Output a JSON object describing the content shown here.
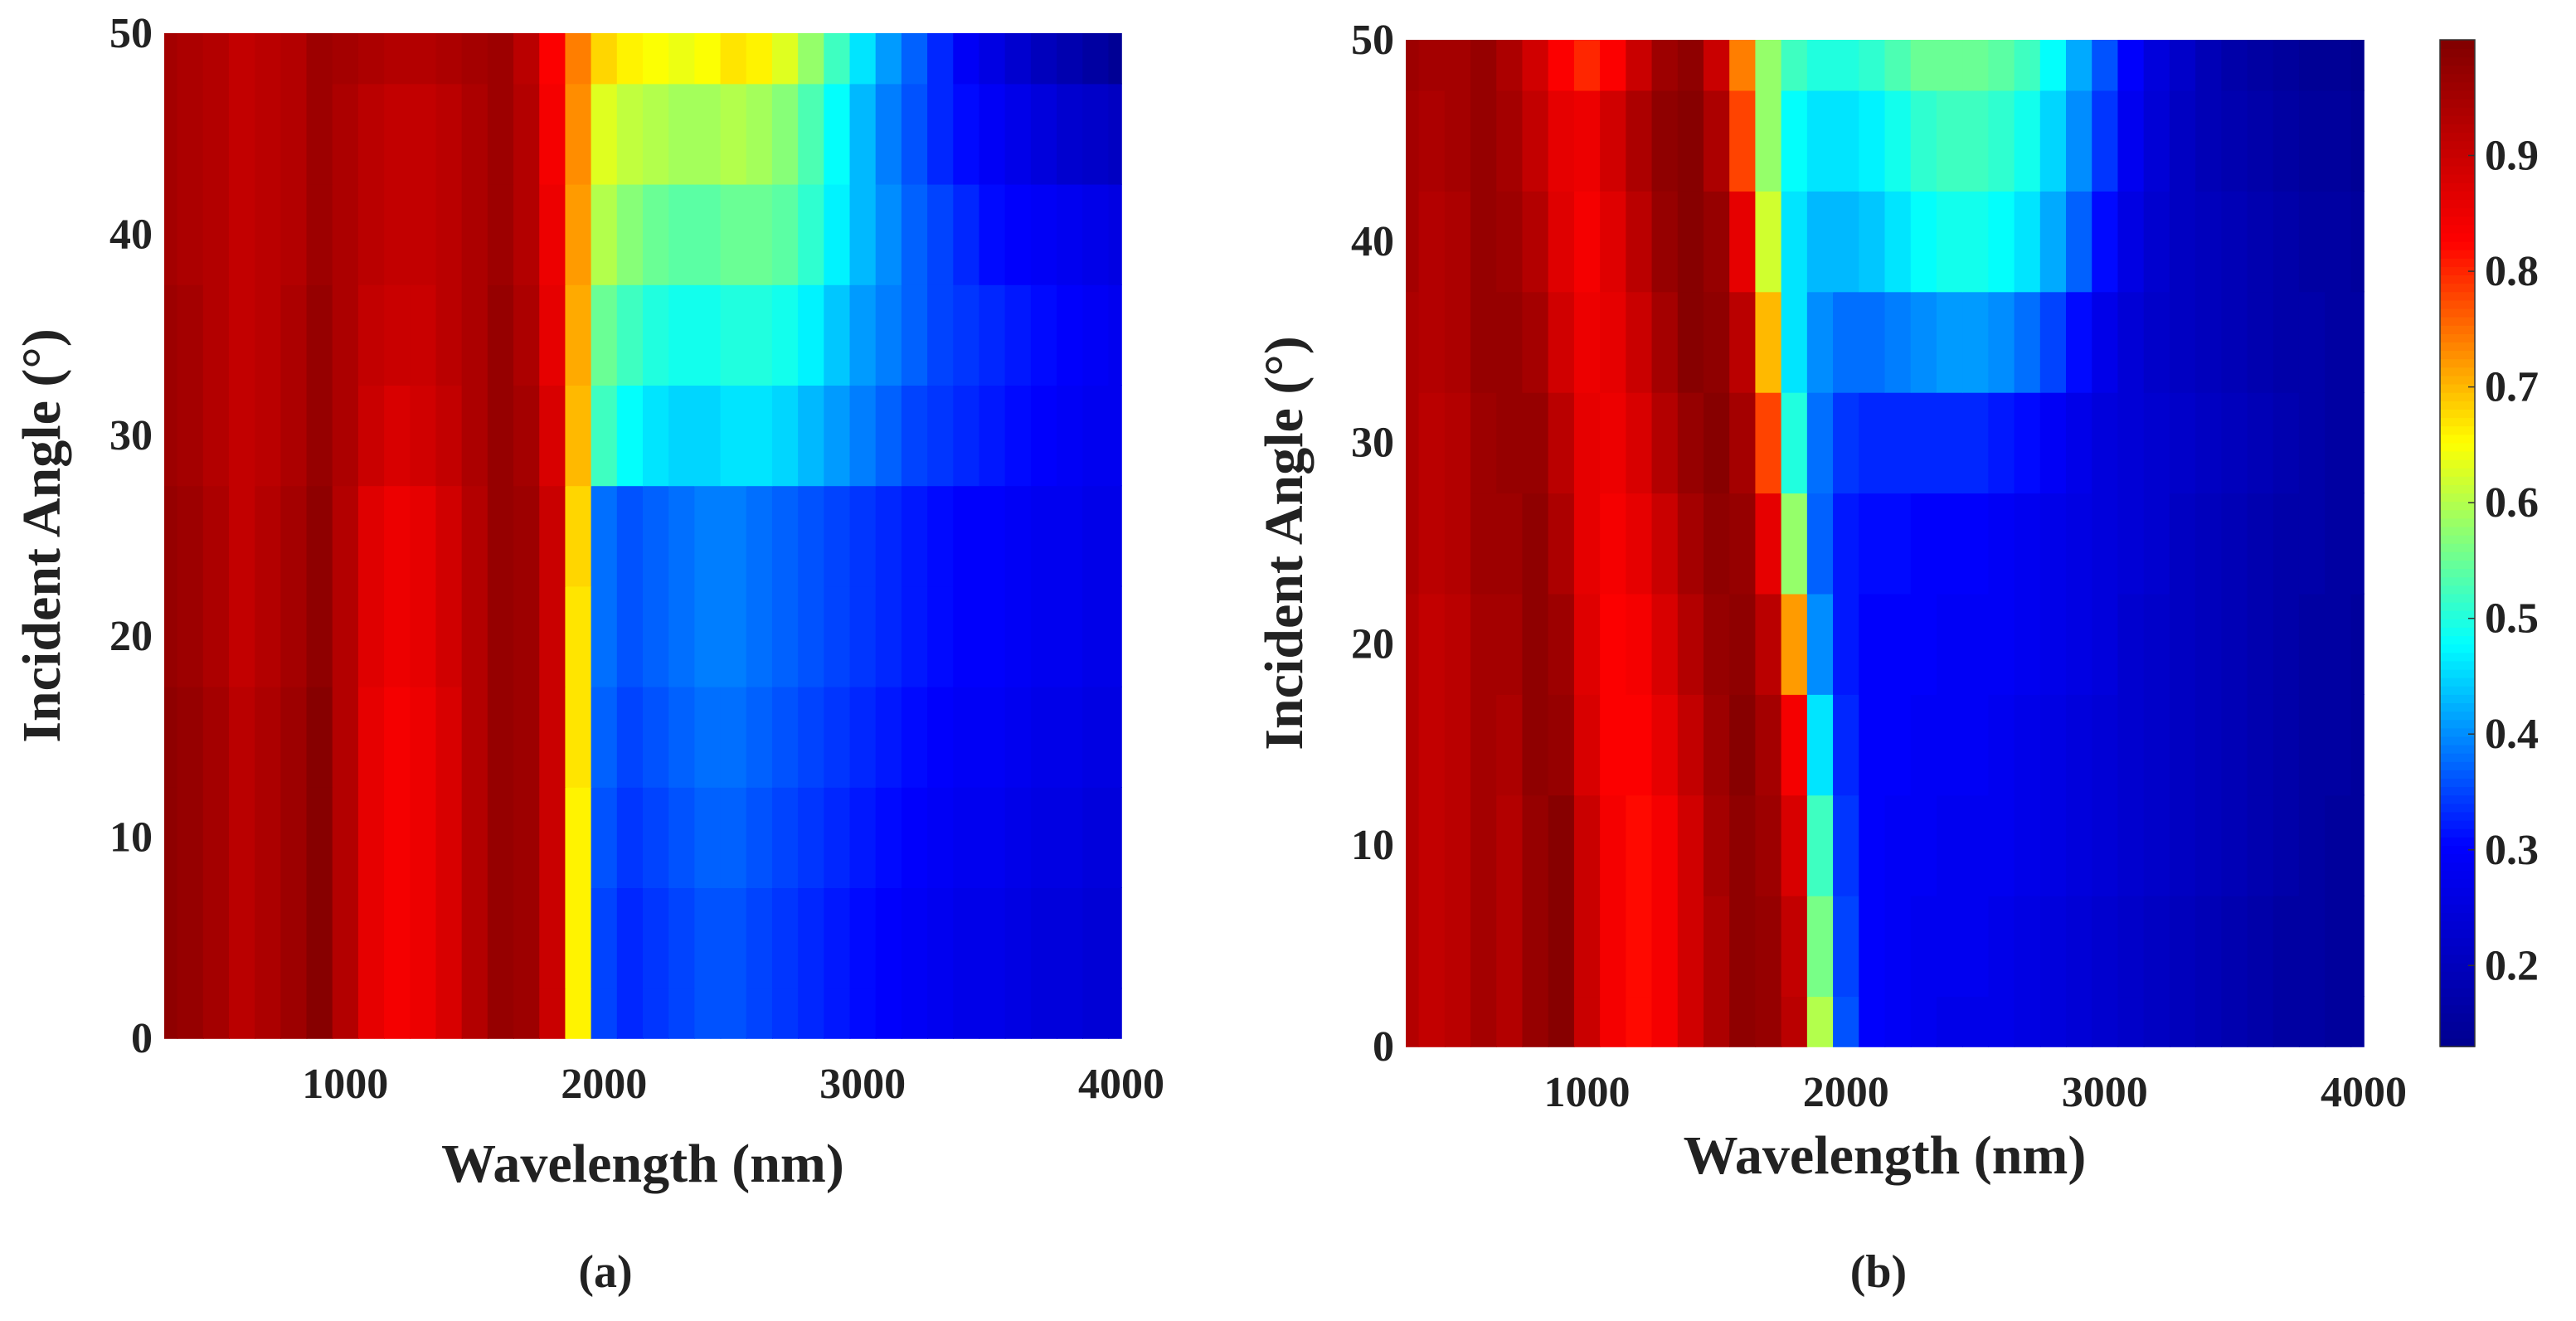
{
  "figure": {
    "colormap": "jet",
    "colormap_stops": [
      "#00008f",
      "#0000ff",
      "#00ffff",
      "#ffff00",
      "#ff0000",
      "#800000"
    ]
  },
  "chart_data": [
    {
      "type": "heatmap",
      "panel": "a",
      "caption": "(a)",
      "title": "",
      "xlabel": "Wavelength (nm)",
      "ylabel": "Incident Angle (°)",
      "xlim": [
        300,
        4000
      ],
      "ylim": [
        0,
        50
      ],
      "xticks": [
        1000,
        2000,
        3000,
        4000
      ],
      "xtick_labels": [
        "1000",
        "2000",
        "3000",
        "4000"
      ],
      "yticks": [
        0,
        10,
        20,
        30,
        40,
        50
      ],
      "ytick_labels": [
        "0",
        "10",
        "20",
        "30",
        "40",
        "50"
      ],
      "x": [
        300,
        400,
        500,
        600,
        700,
        800,
        900,
        1000,
        1100,
        1200,
        1300,
        1400,
        1500,
        1600,
        1700,
        1800,
        1900,
        2000,
        2100,
        2200,
        2300,
        2400,
        2500,
        2600,
        2700,
        2800,
        2900,
        3000,
        3100,
        3200,
        3300,
        3400,
        3500,
        3600,
        3700,
        3800,
        3900,
        4000
      ],
      "y": [
        0,
        5,
        10,
        15,
        20,
        25,
        30,
        35,
        40,
        45,
        50
      ],
      "z": [
        [
          0.98,
          0.97,
          0.95,
          0.92,
          0.94,
          0.96,
          0.99,
          0.93,
          0.86,
          0.84,
          0.85,
          0.88,
          0.93,
          0.97,
          0.96,
          0.9,
          0.66,
          0.35,
          0.33,
          0.34,
          0.35,
          0.36,
          0.36,
          0.35,
          0.34,
          0.33,
          0.32,
          0.31,
          0.3,
          0.29,
          0.28,
          0.27,
          0.27,
          0.26,
          0.25,
          0.25,
          0.24,
          0.24
        ],
        [
          0.98,
          0.97,
          0.95,
          0.92,
          0.94,
          0.96,
          0.99,
          0.93,
          0.86,
          0.84,
          0.85,
          0.88,
          0.93,
          0.97,
          0.96,
          0.9,
          0.66,
          0.35,
          0.33,
          0.34,
          0.35,
          0.36,
          0.36,
          0.35,
          0.34,
          0.33,
          0.32,
          0.31,
          0.3,
          0.29,
          0.28,
          0.27,
          0.27,
          0.26,
          0.25,
          0.25,
          0.24,
          0.24
        ],
        [
          0.98,
          0.97,
          0.95,
          0.92,
          0.94,
          0.96,
          0.99,
          0.93,
          0.86,
          0.84,
          0.85,
          0.88,
          0.93,
          0.97,
          0.96,
          0.9,
          0.66,
          0.36,
          0.34,
          0.35,
          0.36,
          0.37,
          0.37,
          0.36,
          0.35,
          0.34,
          0.33,
          0.32,
          0.31,
          0.3,
          0.29,
          0.28,
          0.28,
          0.27,
          0.26,
          0.26,
          0.25,
          0.25
        ],
        [
          0.98,
          0.97,
          0.95,
          0.92,
          0.94,
          0.96,
          0.99,
          0.93,
          0.86,
          0.84,
          0.85,
          0.88,
          0.93,
          0.97,
          0.96,
          0.9,
          0.67,
          0.37,
          0.35,
          0.36,
          0.37,
          0.38,
          0.38,
          0.37,
          0.36,
          0.35,
          0.34,
          0.33,
          0.32,
          0.31,
          0.3,
          0.29,
          0.29,
          0.28,
          0.27,
          0.27,
          0.26,
          0.26
        ],
        [
          0.97,
          0.96,
          0.94,
          0.91,
          0.93,
          0.95,
          0.98,
          0.93,
          0.87,
          0.85,
          0.86,
          0.89,
          0.93,
          0.97,
          0.96,
          0.9,
          0.67,
          0.38,
          0.36,
          0.37,
          0.38,
          0.39,
          0.39,
          0.38,
          0.37,
          0.36,
          0.35,
          0.34,
          0.33,
          0.32,
          0.31,
          0.3,
          0.3,
          0.29,
          0.28,
          0.28,
          0.27,
          0.27
        ],
        [
          0.97,
          0.96,
          0.94,
          0.91,
          0.93,
          0.95,
          0.98,
          0.93,
          0.87,
          0.85,
          0.86,
          0.89,
          0.93,
          0.97,
          0.96,
          0.9,
          0.68,
          0.38,
          0.36,
          0.37,
          0.38,
          0.39,
          0.39,
          0.38,
          0.37,
          0.36,
          0.35,
          0.34,
          0.33,
          0.32,
          0.31,
          0.3,
          0.3,
          0.29,
          0.28,
          0.28,
          0.27,
          0.27
        ],
        [
          0.96,
          0.95,
          0.93,
          0.91,
          0.92,
          0.94,
          0.97,
          0.94,
          0.9,
          0.88,
          0.89,
          0.91,
          0.94,
          0.97,
          0.95,
          0.88,
          0.7,
          0.52,
          0.48,
          0.46,
          0.45,
          0.45,
          0.46,
          0.46,
          0.45,
          0.43,
          0.41,
          0.39,
          0.37,
          0.35,
          0.34,
          0.33,
          0.32,
          0.31,
          0.3,
          0.29,
          0.28,
          0.28
        ],
        [
          0.96,
          0.95,
          0.93,
          0.91,
          0.92,
          0.94,
          0.97,
          0.94,
          0.91,
          0.9,
          0.9,
          0.92,
          0.94,
          0.97,
          0.94,
          0.86,
          0.71,
          0.55,
          0.52,
          0.5,
          0.49,
          0.49,
          0.5,
          0.5,
          0.49,
          0.47,
          0.44,
          0.41,
          0.39,
          0.37,
          0.35,
          0.34,
          0.33,
          0.32,
          0.31,
          0.3,
          0.29,
          0.28
        ],
        [
          0.95,
          0.94,
          0.93,
          0.91,
          0.92,
          0.93,
          0.96,
          0.94,
          0.92,
          0.91,
          0.91,
          0.92,
          0.94,
          0.96,
          0.93,
          0.85,
          0.72,
          0.6,
          0.57,
          0.55,
          0.54,
          0.54,
          0.55,
          0.55,
          0.54,
          0.51,
          0.47,
          0.43,
          0.4,
          0.37,
          0.35,
          0.33,
          0.31,
          0.3,
          0.29,
          0.28,
          0.27,
          0.26
        ],
        [
          0.95,
          0.94,
          0.93,
          0.91,
          0.92,
          0.93,
          0.96,
          0.94,
          0.92,
          0.91,
          0.91,
          0.92,
          0.94,
          0.96,
          0.93,
          0.84,
          0.73,
          0.63,
          0.61,
          0.6,
          0.59,
          0.59,
          0.6,
          0.59,
          0.57,
          0.53,
          0.48,
          0.43,
          0.39,
          0.36,
          0.33,
          0.31,
          0.29,
          0.27,
          0.25,
          0.23,
          0.22,
          0.21
        ],
        [
          0.95,
          0.94,
          0.93,
          0.91,
          0.92,
          0.93,
          0.96,
          0.95,
          0.94,
          0.93,
          0.93,
          0.94,
          0.95,
          0.96,
          0.92,
          0.83,
          0.74,
          0.68,
          0.66,
          0.65,
          0.64,
          0.65,
          0.67,
          0.66,
          0.63,
          0.58,
          0.52,
          0.46,
          0.41,
          0.37,
          0.33,
          0.29,
          0.26,
          0.23,
          0.2,
          0.18,
          0.16,
          0.14
        ]
      ]
    },
    {
      "type": "heatmap",
      "panel": "b",
      "caption": "(b)",
      "title": "",
      "xlabel": "Wavelength (nm)",
      "ylabel": "Incident Angle (°)",
      "xlim": [
        300,
        4000
      ],
      "ylim": [
        0,
        50
      ],
      "xticks": [
        1000,
        2000,
        3000,
        4000
      ],
      "xtick_labels": [
        "1000",
        "2000",
        "3000",
        "4000"
      ],
      "yticks": [
        0,
        10,
        20,
        30,
        40,
        50
      ],
      "ytick_labels": [
        "0",
        "10",
        "20",
        "30",
        "40",
        "50"
      ],
      "x": [
        300,
        400,
        500,
        600,
        700,
        800,
        900,
        1000,
        1100,
        1200,
        1300,
        1400,
        1500,
        1600,
        1700,
        1800,
        1900,
        2000,
        2100,
        2200,
        2300,
        2400,
        2500,
        2600,
        2700,
        2800,
        2900,
        3000,
        3100,
        3200,
        3300,
        3400,
        3500,
        3600,
        3700,
        3800,
        3900,
        4000
      ],
      "y": [
        0,
        5,
        10,
        15,
        20,
        25,
        30,
        35,
        40,
        45,
        50
      ],
      "z": [
        [
          0.93,
          0.91,
          0.92,
          0.95,
          0.93,
          0.97,
          0.99,
          0.9,
          0.84,
          0.82,
          0.84,
          0.89,
          0.94,
          0.98,
          0.97,
          0.92,
          0.6,
          0.36,
          0.3,
          0.29,
          0.28,
          0.27,
          0.27,
          0.27,
          0.26,
          0.25,
          0.24,
          0.23,
          0.22,
          0.21,
          0.2,
          0.19,
          0.18,
          0.17,
          0.16,
          0.16,
          0.15,
          0.15
        ],
        [
          0.93,
          0.91,
          0.92,
          0.95,
          0.93,
          0.97,
          0.99,
          0.9,
          0.84,
          0.82,
          0.84,
          0.89,
          0.94,
          0.98,
          0.97,
          0.91,
          0.56,
          0.35,
          0.3,
          0.29,
          0.28,
          0.28,
          0.28,
          0.27,
          0.26,
          0.25,
          0.24,
          0.23,
          0.22,
          0.21,
          0.2,
          0.19,
          0.18,
          0.17,
          0.16,
          0.16,
          0.15,
          0.15
        ],
        [
          0.93,
          0.91,
          0.92,
          0.95,
          0.93,
          0.97,
          0.99,
          0.9,
          0.84,
          0.82,
          0.84,
          0.89,
          0.95,
          0.98,
          0.96,
          0.88,
          0.52,
          0.34,
          0.3,
          0.29,
          0.29,
          0.28,
          0.28,
          0.28,
          0.27,
          0.26,
          0.25,
          0.24,
          0.23,
          0.22,
          0.21,
          0.2,
          0.19,
          0.18,
          0.17,
          0.16,
          0.15,
          0.15
        ],
        [
          0.93,
          0.91,
          0.92,
          0.95,
          0.94,
          0.98,
          0.97,
          0.88,
          0.83,
          0.83,
          0.86,
          0.91,
          0.96,
          0.99,
          0.95,
          0.84,
          0.46,
          0.33,
          0.3,
          0.3,
          0.29,
          0.29,
          0.29,
          0.28,
          0.27,
          0.26,
          0.25,
          0.24,
          0.23,
          0.22,
          0.21,
          0.2,
          0.19,
          0.18,
          0.17,
          0.16,
          0.16,
          0.15
        ],
        [
          0.93,
          0.91,
          0.92,
          0.95,
          0.95,
          0.98,
          0.96,
          0.87,
          0.83,
          0.84,
          0.88,
          0.93,
          0.97,
          0.98,
          0.92,
          0.72,
          0.4,
          0.32,
          0.3,
          0.3,
          0.3,
          0.29,
          0.29,
          0.29,
          0.28,
          0.27,
          0.26,
          0.25,
          0.23,
          0.22,
          0.21,
          0.2,
          0.19,
          0.18,
          0.17,
          0.16,
          0.16,
          0.15
        ],
        [
          0.94,
          0.92,
          0.93,
          0.96,
          0.96,
          0.98,
          0.94,
          0.86,
          0.84,
          0.86,
          0.9,
          0.95,
          0.98,
          0.97,
          0.86,
          0.58,
          0.37,
          0.32,
          0.31,
          0.31,
          0.3,
          0.3,
          0.3,
          0.29,
          0.28,
          0.27,
          0.26,
          0.25,
          0.24,
          0.23,
          0.21,
          0.2,
          0.19,
          0.18,
          0.17,
          0.17,
          0.16,
          0.16
        ],
        [
          0.94,
          0.92,
          0.93,
          0.96,
          0.97,
          0.97,
          0.92,
          0.86,
          0.85,
          0.88,
          0.93,
          0.97,
          0.99,
          0.95,
          0.78,
          0.5,
          0.38,
          0.34,
          0.33,
          0.33,
          0.33,
          0.33,
          0.33,
          0.32,
          0.31,
          0.29,
          0.27,
          0.25,
          0.24,
          0.23,
          0.22,
          0.21,
          0.2,
          0.19,
          0.18,
          0.17,
          0.16,
          0.16
        ],
        [
          0.94,
          0.93,
          0.94,
          0.97,
          0.97,
          0.95,
          0.89,
          0.85,
          0.86,
          0.9,
          0.95,
          0.99,
          0.98,
          0.92,
          0.7,
          0.46,
          0.4,
          0.38,
          0.38,
          0.39,
          0.4,
          0.41,
          0.41,
          0.4,
          0.38,
          0.35,
          0.31,
          0.27,
          0.24,
          0.22,
          0.21,
          0.2,
          0.19,
          0.18,
          0.17,
          0.17,
          0.16,
          0.16
        ],
        [
          0.95,
          0.93,
          0.94,
          0.97,
          0.96,
          0.93,
          0.87,
          0.84,
          0.87,
          0.92,
          0.97,
          0.99,
          0.97,
          0.86,
          0.62,
          0.46,
          0.43,
          0.43,
          0.44,
          0.46,
          0.48,
          0.49,
          0.49,
          0.48,
          0.46,
          0.42,
          0.37,
          0.31,
          0.26,
          0.23,
          0.21,
          0.2,
          0.19,
          0.18,
          0.17,
          0.16,
          0.16,
          0.15
        ],
        [
          0.95,
          0.94,
          0.95,
          0.97,
          0.95,
          0.91,
          0.86,
          0.85,
          0.89,
          0.94,
          0.98,
          0.99,
          0.94,
          0.78,
          0.58,
          0.48,
          0.46,
          0.46,
          0.47,
          0.49,
          0.51,
          0.52,
          0.52,
          0.51,
          0.49,
          0.45,
          0.4,
          0.34,
          0.28,
          0.24,
          0.21,
          0.19,
          0.18,
          0.17,
          0.16,
          0.15,
          0.15,
          0.14
        ],
        [
          0.96,
          0.95,
          0.95,
          0.97,
          0.94,
          0.89,
          0.83,
          0.8,
          0.83,
          0.9,
          0.96,
          0.98,
          0.9,
          0.74,
          0.58,
          0.52,
          0.5,
          0.5,
          0.51,
          0.53,
          0.55,
          0.55,
          0.55,
          0.54,
          0.52,
          0.48,
          0.42,
          0.36,
          0.3,
          0.25,
          0.22,
          0.19,
          0.17,
          0.16,
          0.15,
          0.14,
          0.14,
          0.13
        ]
      ]
    }
  ],
  "colorbar": {
    "range": [
      0.13,
      1.0
    ],
    "ticks": [
      0.2,
      0.3,
      0.4,
      0.5,
      0.6,
      0.7,
      0.8,
      0.9
    ],
    "tick_labels": [
      "0.2",
      "0.3",
      "0.4",
      "0.5",
      "0.6",
      "0.7",
      "0.8",
      "0.9"
    ]
  }
}
